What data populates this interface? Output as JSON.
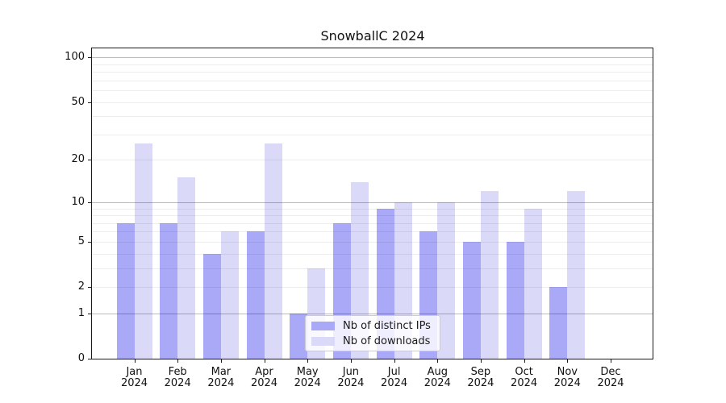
{
  "chart_data": {
    "type": "bar",
    "title": "SnowballC 2024",
    "categories": [
      "Jan",
      "Feb",
      "Mar",
      "Apr",
      "May",
      "Jun",
      "Jul",
      "Aug",
      "Sep",
      "Oct",
      "Nov",
      "Dec"
    ],
    "category_year": "2024",
    "series": [
      {
        "name": "Nb of distinct IPs",
        "color": "#a9a9f8",
        "values": [
          7,
          7,
          4,
          6,
          1,
          7,
          9,
          6,
          5,
          5,
          2,
          0
        ]
      },
      {
        "name": "Nb of downloads",
        "color": "#dadaf8",
        "values": [
          26,
          15,
          6,
          26,
          3,
          14,
          10,
          10,
          12,
          9,
          12,
          0
        ]
      }
    ],
    "yscale": "log1p",
    "ylim": [
      0,
      115
    ],
    "yticks": [
      0,
      1,
      2,
      5,
      10,
      20,
      50,
      100
    ],
    "major_gridlines": [
      1,
      10,
      100
    ],
    "minor_gridlines": [
      2,
      3,
      4,
      5,
      6,
      7,
      8,
      9,
      20,
      30,
      40,
      50,
      60,
      70,
      80,
      90
    ],
    "grid": true,
    "legend_position": "lower center",
    "axis_color": "#1a1a1a"
  }
}
